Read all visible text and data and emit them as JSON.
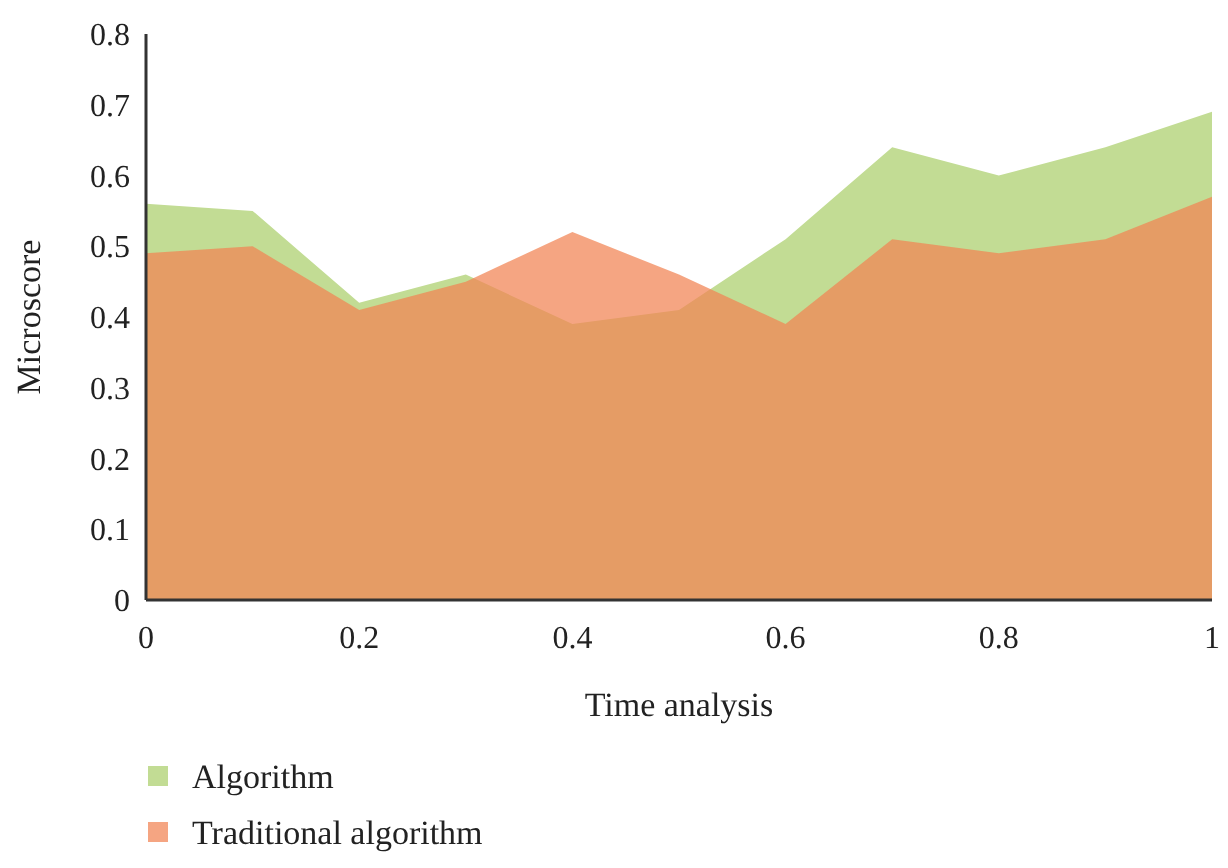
{
  "chart_data": {
    "type": "area",
    "xlabel": "Time analysis",
    "ylabel": "Microscore",
    "x": [
      0,
      0.1,
      0.2,
      0.3,
      0.4,
      0.5,
      0.6,
      0.7,
      0.8,
      0.9,
      1
    ],
    "series": [
      {
        "name": "Algorithm",
        "color": "#c2dc94",
        "values": [
          0.56,
          0.55,
          0.42,
          0.46,
          0.39,
          0.41,
          0.51,
          0.64,
          0.6,
          0.64,
          0.69
        ]
      },
      {
        "name": "Traditional algorithm",
        "color": "#f18454",
        "values": [
          0.49,
          0.5,
          0.41,
          0.45,
          0.52,
          0.46,
          0.39,
          0.51,
          0.49,
          0.51,
          0.57
        ]
      }
    ],
    "xlim": [
      0,
      1
    ],
    "xticks": [
      0,
      0.2,
      0.4,
      0.6,
      0.8,
      1
    ],
    "ylim": [
      0,
      0.8
    ],
    "yticks": [
      0,
      0.1,
      0.2,
      0.3,
      0.4,
      0.5,
      0.6,
      0.7,
      0.8
    ],
    "grid": false,
    "legend": "bottom"
  }
}
